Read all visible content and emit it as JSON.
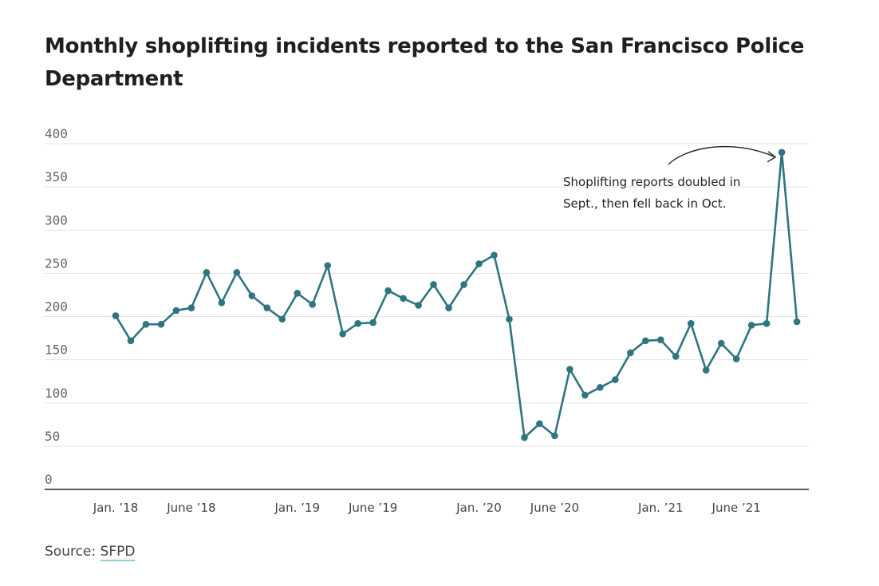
{
  "title": "Monthly shoplifting incidents reported to the San Francisco Police Department",
  "source": {
    "label": "Source:",
    "link_text": "SFPD"
  },
  "colors": {
    "line": "#2f7580",
    "grid": "#e3e3e3",
    "axis": "#222222"
  },
  "chart_data": {
    "type": "line",
    "title": "Monthly shoplifting incidents reported to the San Francisco Police Department",
    "xlabel": "",
    "ylabel": "",
    "ylim": [
      0,
      400
    ],
    "yticks": [
      0,
      50,
      100,
      150,
      200,
      250,
      300,
      350,
      400
    ],
    "x_tick_labels": [
      {
        "label": "Jan. ’18",
        "index": 0
      },
      {
        "label": "June ’18",
        "index": 5
      },
      {
        "label": "Jan. ’19",
        "index": 12
      },
      {
        "label": "June ’19",
        "index": 17
      },
      {
        "label": "Jan. ’20",
        "index": 24
      },
      {
        "label": "June ’20",
        "index": 29
      },
      {
        "label": "Jan. ’21",
        "index": 36
      },
      {
        "label": "June ’21",
        "index": 41
      }
    ],
    "series": [
      {
        "name": "Shoplifting reports",
        "months": [
          "Jan 2018",
          "Feb 2018",
          "Mar 2018",
          "Apr 2018",
          "May 2018",
          "Jun 2018",
          "Jul 2018",
          "Aug 2018",
          "Sep 2018",
          "Oct 2018",
          "Nov 2018",
          "Dec 2018",
          "Jan 2019",
          "Feb 2019",
          "Mar 2019",
          "Apr 2019",
          "May 2019",
          "Jun 2019",
          "Jul 2019",
          "Aug 2019",
          "Sep 2019",
          "Oct 2019",
          "Nov 2019",
          "Dec 2019",
          "Jan 2020",
          "Feb 2020",
          "Mar 2020",
          "Apr 2020",
          "May 2020",
          "Jun 2020",
          "Jul 2020",
          "Aug 2020",
          "Sep 2020",
          "Oct 2020",
          "Nov 2020",
          "Dec 2020",
          "Jan 2021",
          "Feb 2021",
          "Mar 2021",
          "Apr 2021",
          "May 2021",
          "Jun 2021",
          "Jul 2021",
          "Aug 2021",
          "Sep 2021",
          "Oct 2021"
        ],
        "values": [
          201,
          172,
          191,
          191,
          207,
          210,
          251,
          216,
          251,
          224,
          210,
          197,
          227,
          214,
          259,
          180,
          192,
          193,
          230,
          221,
          213,
          237,
          210,
          237,
          261,
          271,
          197,
          60,
          76,
          62,
          139,
          109,
          118,
          127,
          158,
          172,
          173,
          154,
          192,
          138,
          169,
          151,
          190,
          192,
          390,
          194
        ]
      }
    ],
    "annotation": {
      "text_lines": [
        "Shoplifting reports doubled in",
        "Sept., then fell back in Oct."
      ],
      "target_index": 44
    }
  }
}
